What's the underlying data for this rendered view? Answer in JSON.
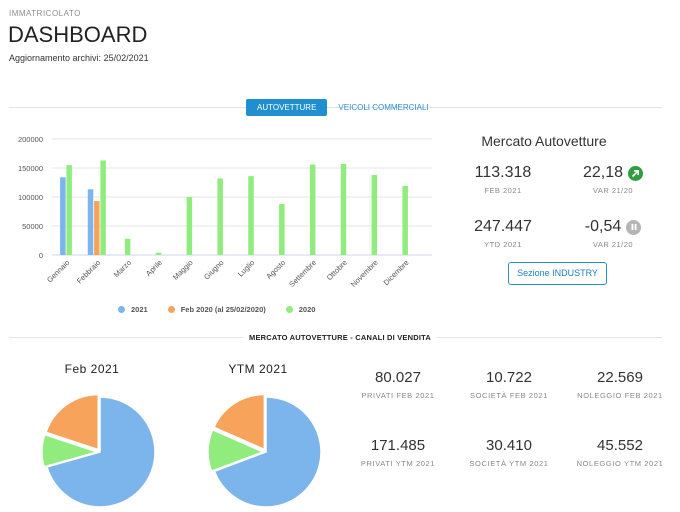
{
  "header": {
    "eyebrow": "IMMATRICOLATO",
    "title": "DASHBOARD",
    "update_label": "Aggiornamento archivi:",
    "update_date": "25/02/2021"
  },
  "tabs": [
    {
      "label": "AUTOVETTURE",
      "active": true
    },
    {
      "label": "VEICOLI COMMERCIALI",
      "active": false
    }
  ],
  "chart_data": {
    "type": "bar",
    "title": "",
    "xlabel": "",
    "ylabel": "",
    "ylim": [
      0,
      200000
    ],
    "yticks": [
      "0",
      "50000",
      "100000",
      "150000",
      "200000"
    ],
    "categories": [
      "Gennaio",
      "Febbraio",
      "Marzo",
      "Aprile",
      "Maggio",
      "Giugno",
      "Luglio",
      "Agosto",
      "Settembre",
      "Ottobre",
      "Novembre",
      "Dicembre"
    ],
    "series": [
      {
        "name": "2021",
        "color": "#7cb5ec",
        "values": [
          134000,
          113318,
          null,
          null,
          null,
          null,
          null,
          null,
          null,
          null,
          null,
          null
        ]
      },
      {
        "name": "Feb 2020 (al 25/02/2020)",
        "color": "#f7a35c",
        "values": [
          null,
          93000,
          null,
          null,
          null,
          null,
          null,
          null,
          null,
          null,
          null,
          null
        ]
      },
      {
        "name": "2020",
        "color": "#90ed7d",
        "values": [
          155000,
          163000,
          28000,
          4000,
          100000,
          132000,
          136000,
          88000,
          156000,
          157000,
          138000,
          119000
        ]
      }
    ],
    "legend": "bottom",
    "grid": true
  },
  "market": {
    "title": "Mercato Autovetture",
    "kpis": [
      {
        "value": "113.318",
        "label": "FEB 2021"
      },
      {
        "value": "22,18",
        "label": "VAR 21/20",
        "icon": "arrow-up-right-icon"
      },
      {
        "value": "247.447",
        "label": "YTD 2021"
      },
      {
        "value": "-0,54",
        "label": "VAR 21/20",
        "icon": "pause-icon"
      }
    ],
    "button": "Sezione INDUSTRY"
  },
  "channels": {
    "title": "MERCATO AUTOVETTURE - CANALI DI VENDITA",
    "pies": [
      {
        "title": "Feb 2021",
        "slices": [
          {
            "name": "Privati",
            "value": 80027,
            "color": "#7cb5ec"
          },
          {
            "name": "Società",
            "value": 10722,
            "color": "#90ed7d"
          },
          {
            "name": "Noleggio",
            "value": 22569,
            "color": "#f7a35c"
          }
        ]
      },
      {
        "title": "YTM 2021",
        "slices": [
          {
            "name": "Privati",
            "value": 171485,
            "color": "#7cb5ec"
          },
          {
            "name": "Società",
            "value": 30410,
            "color": "#90ed7d"
          },
          {
            "name": "Noleggio",
            "value": 45552,
            "color": "#f7a35c"
          }
        ]
      }
    ],
    "stats": [
      {
        "value": "80.027",
        "label": "PRIVATI FEB 2021"
      },
      {
        "value": "10.722",
        "label": "SOCIETÀ FEB 2021"
      },
      {
        "value": "22.569",
        "label": "NOLEGGIO FEB 2021"
      },
      {
        "value": "171.485",
        "label": "PRIVATI YTM 2021"
      },
      {
        "value": "30.410",
        "label": "SOCIETÀ YTM 2021"
      },
      {
        "value": "45.552",
        "label": "NOLEGGIO YTM 2021"
      }
    ]
  }
}
